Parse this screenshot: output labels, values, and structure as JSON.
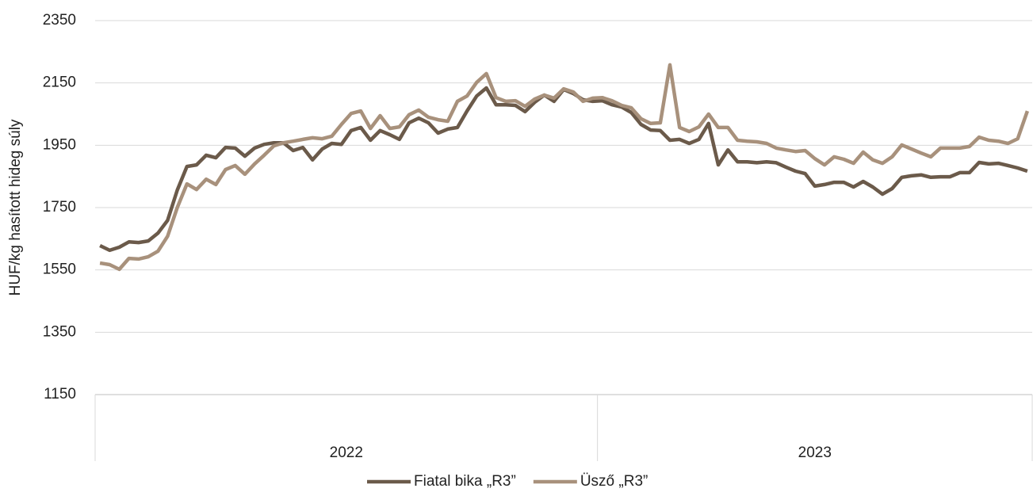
{
  "chart_data": {
    "type": "line",
    "y_label": "HUF/kg hasított hideg súly",
    "categories": [
      null,
      null,
      null,
      null,
      null,
      null,
      null,
      null,
      null,
      null,
      null,
      null,
      null,
      null,
      null,
      null,
      null,
      null,
      null,
      null,
      null,
      null,
      null,
      null,
      null,
      null,
      null,
      null,
      null,
      null,
      null,
      null,
      null,
      null,
      null,
      null,
      null,
      null,
      null,
      null,
      null,
      null,
      null,
      null,
      null,
      null,
      null,
      null,
      null,
      null,
      null,
      null,
      null,
      null,
      null,
      null,
      null,
      null,
      null,
      null,
      null,
      null,
      null,
      null,
      null,
      null,
      null,
      null,
      null,
      null,
      null,
      null,
      null,
      null,
      null,
      null,
      null,
      null,
      null,
      null,
      null,
      null,
      null,
      null,
      null,
      null,
      null,
      null,
      null,
      null,
      null,
      null,
      null,
      null,
      null,
      null,
      null
    ],
    "x_groups": [
      {
        "label": "2022",
        "count": 52
      },
      {
        "label": "2023",
        "count": 45
      }
    ],
    "series": [
      {
        "name": "Fiatal bika „R3”",
        "color": "#6b5a4a",
        "values": [
          1628,
          1613,
          1623,
          1640,
          1638,
          1643,
          1668,
          1709,
          1806,
          1882,
          1887,
          1918,
          1910,
          1943,
          1941,
          1915,
          1941,
          1953,
          1958,
          1958,
          1933,
          1943,
          1903,
          1938,
          1956,
          1953,
          1997,
          2007,
          1966,
          1997,
          1984,
          1969,
          2022,
          2037,
          2022,
          1989,
          2002,
          2007,
          2060,
          2108,
          2134,
          2080,
          2080,
          2078,
          2058,
          2088,
          2111,
          2091,
          2129,
          2116,
          2096,
          2091,
          2093,
          2080,
          2073,
          2055,
          2017,
          1999,
          1997,
          1966,
          1969,
          1956,
          1969,
          2020,
          1887,
          1935,
          1897,
          1897,
          1894,
          1897,
          1894,
          1880,
          1867,
          1859,
          1819,
          1824,
          1831,
          1831,
          1816,
          1834,
          1816,
          1793,
          1811,
          1847,
          1852,
          1855,
          1847,
          1849,
          1849,
          1862,
          1862,
          1895,
          1890,
          1892,
          1885,
          1877,
          1867
        ]
      },
      {
        "name": "Üsző „R3”",
        "color": "#a8917c",
        "values": [
          1572,
          1567,
          1552,
          1587,
          1585,
          1592,
          1610,
          1658,
          1750,
          1826,
          1808,
          1841,
          1824,
          1872,
          1885,
          1857,
          1890,
          1918,
          1948,
          1958,
          1963,
          1969,
          1974,
          1971,
          1979,
          2017,
          2052,
          2060,
          2004,
          2045,
          2004,
          2009,
          2048,
          2063,
          2040,
          2032,
          2027,
          2091,
          2108,
          2152,
          2180,
          2103,
          2091,
          2093,
          2075,
          2098,
          2111,
          2101,
          2131,
          2121,
          2091,
          2101,
          2103,
          2093,
          2078,
          2070,
          2035,
          2020,
          2022,
          2208,
          2007,
          1994,
          2009,
          2050,
          2007,
          2007,
          1966,
          1963,
          1961,
          1956,
          1941,
          1935,
          1930,
          1933,
          1907,
          1887,
          1913,
          1905,
          1892,
          1928,
          1903,
          1892,
          1913,
          1951,
          1938,
          1925,
          1913,
          1941,
          1941,
          1941,
          1946,
          1976,
          1966,
          1963,
          1956,
          1971,
          2060
        ]
      }
    ],
    "ylim": [
      1150,
      2350
    ],
    "yticks": [
      1150,
      1350,
      1550,
      1750,
      1950,
      2150,
      2350
    ],
    "grid": true,
    "legend": "bottom"
  }
}
